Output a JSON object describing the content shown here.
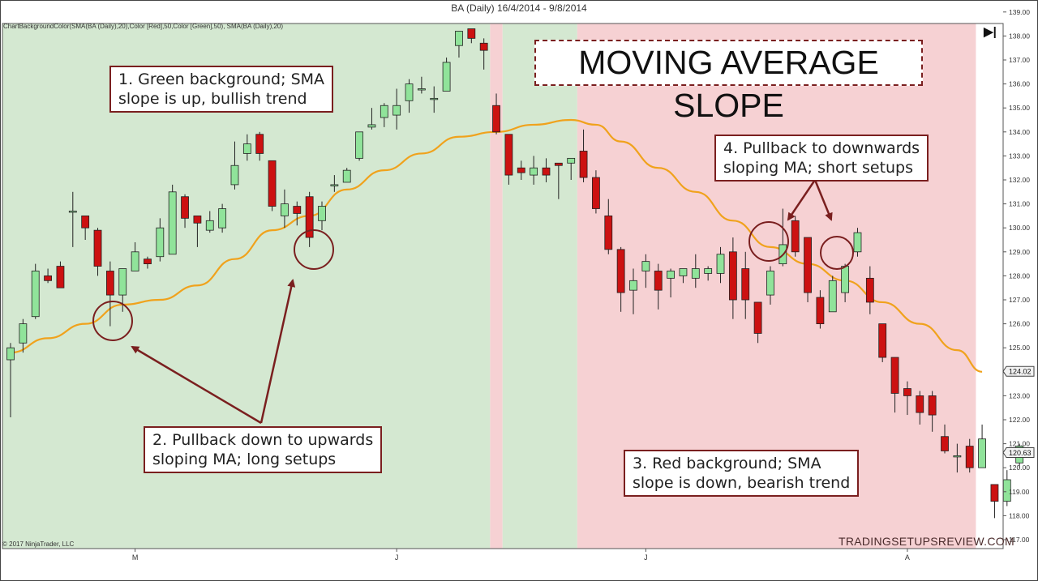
{
  "header": {
    "title": "BA (Daily)  16/4/2014 - 9/8/2014",
    "indicator_label": "ChartBackgroundColor(SMA(BA (Daily),20),Color [Red],50,Color [Green],50), SMA(BA (Daily),20)",
    "nav_glyph": "▶|"
  },
  "footer": {
    "copyright": "© 2017 NinjaTrader, LLC",
    "watermark": "TRADINGSETUPSREVIEW.COM"
  },
  "annotations": {
    "main_title": "MOVING AVERAGE SLOPE",
    "note1": [
      "1. Green background; SMA",
      "slope is up, bullish trend"
    ],
    "note2": [
      "2. Pullback down to upwards",
      "sloping MA; long setups"
    ],
    "note3": [
      "3. Red background; SMA",
      "slope is down, bearish trend"
    ],
    "note4": [
      "4. Pullback to downwards",
      "sloping MA; short setups"
    ]
  },
  "colors": {
    "bull_background": "#d4e8d1",
    "bear_background": "#f6d1d3",
    "up_candle": "#90e39a",
    "down_candle": "#cc1111",
    "sma_line": "#f0a21c",
    "annotation": "#7a1f1f"
  },
  "chart_data": {
    "type": "candlestick",
    "ylim": [
      117,
      139
    ],
    "y_ticks": [
      "117.00",
      "118.00",
      "119.00",
      "120.00",
      "121.00",
      "122.00",
      "123.00",
      "124.00",
      "125.00",
      "126.00",
      "127.00",
      "128.00",
      "129.00",
      "130.00",
      "131.00",
      "132.00",
      "133.00",
      "134.00",
      "135.00",
      "136.00",
      "137.00",
      "138.00",
      "139.00"
    ],
    "x_ticks": [
      {
        "label": "M",
        "index": 10
      },
      {
        "label": "J",
        "index": 31
      },
      {
        "label": "J",
        "index": 51
      },
      {
        "label": "A",
        "index": 72
      }
    ],
    "price_markers": [
      {
        "label": "124.02",
        "value": 124.02
      },
      {
        "label": "120.63",
        "value": 120.63
      }
    ],
    "background_segments": [
      {
        "from": 0,
        "to": 38.5,
        "trend": "up"
      },
      {
        "from": 38.5,
        "to": 39.5,
        "trend": "down"
      },
      {
        "from": 39.5,
        "to": 45.5,
        "trend": "up"
      },
      {
        "from": 45.5,
        "to": 77.5,
        "trend": "down"
      }
    ],
    "candles": [
      {
        "o": 124.5,
        "h": 125.2,
        "l": 122.1,
        "c": 125.0
      },
      {
        "o": 125.2,
        "h": 126.2,
        "l": 124.8,
        "c": 126.0
      },
      {
        "o": 126.3,
        "h": 128.5,
        "l": 126.2,
        "c": 128.2
      },
      {
        "o": 128.0,
        "h": 128.3,
        "l": 127.7,
        "c": 127.8
      },
      {
        "o": 128.4,
        "h": 128.6,
        "l": 127.5,
        "c": 127.5
      },
      {
        "o": 130.7,
        "h": 131.5,
        "l": 129.2,
        "c": 130.7
      },
      {
        "o": 130.5,
        "h": 130.5,
        "l": 129.5,
        "c": 130.0
      },
      {
        "o": 129.9,
        "h": 130.0,
        "l": 128.0,
        "c": 128.4
      },
      {
        "o": 128.2,
        "h": 128.6,
        "l": 125.9,
        "c": 127.2
      },
      {
        "o": 127.2,
        "h": 128.3,
        "l": 126.5,
        "c": 128.3
      },
      {
        "o": 128.2,
        "h": 129.4,
        "l": 128.2,
        "c": 129.0
      },
      {
        "o": 128.7,
        "h": 128.8,
        "l": 128.3,
        "c": 128.5
      },
      {
        "o": 128.8,
        "h": 130.4,
        "l": 128.6,
        "c": 130.0
      },
      {
        "o": 128.9,
        "h": 131.8,
        "l": 128.9,
        "c": 131.5
      },
      {
        "o": 131.3,
        "h": 131.4,
        "l": 130.0,
        "c": 130.4
      },
      {
        "o": 130.5,
        "h": 130.5,
        "l": 129.2,
        "c": 130.2
      },
      {
        "o": 129.9,
        "h": 130.7,
        "l": 129.8,
        "c": 130.3
      },
      {
        "o": 130.0,
        "h": 131.0,
        "l": 129.8,
        "c": 130.8
      },
      {
        "o": 131.8,
        "h": 133.6,
        "l": 131.6,
        "c": 132.6
      },
      {
        "o": 133.1,
        "h": 133.9,
        "l": 132.8,
        "c": 133.5
      },
      {
        "o": 133.9,
        "h": 134.0,
        "l": 132.8,
        "c": 133.1
      },
      {
        "o": 132.8,
        "h": 132.8,
        "l": 130.7,
        "c": 130.9
      },
      {
        "o": 130.5,
        "h": 131.6,
        "l": 130.0,
        "c": 131.0
      },
      {
        "o": 130.9,
        "h": 131.1,
        "l": 130.1,
        "c": 130.6
      },
      {
        "o": 131.3,
        "h": 131.5,
        "l": 129.2,
        "c": 129.6
      },
      {
        "o": 130.3,
        "h": 131.1,
        "l": 129.9,
        "c": 130.9
      },
      {
        "o": 131.8,
        "h": 132.2,
        "l": 131.5,
        "c": 131.8
      },
      {
        "o": 131.9,
        "h": 132.5,
        "l": 131.9,
        "c": 132.4
      },
      {
        "o": 132.9,
        "h": 134.0,
        "l": 132.8,
        "c": 134.0
      },
      {
        "o": 134.2,
        "h": 135.0,
        "l": 134.1,
        "c": 134.3
      },
      {
        "o": 134.6,
        "h": 135.2,
        "l": 134.2,
        "c": 135.1
      },
      {
        "o": 134.7,
        "h": 135.8,
        "l": 134.1,
        "c": 135.1
      },
      {
        "o": 135.3,
        "h": 136.2,
        "l": 134.8,
        "c": 136.0
      },
      {
        "o": 135.8,
        "h": 136.3,
        "l": 135.6,
        "c": 135.8
      },
      {
        "o": 135.4,
        "h": 135.9,
        "l": 134.8,
        "c": 135.4
      },
      {
        "o": 135.7,
        "h": 137.1,
        "l": 135.7,
        "c": 136.9
      },
      {
        "o": 137.6,
        "h": 138.2,
        "l": 137.1,
        "c": 138.2
      },
      {
        "o": 138.3,
        "h": 138.3,
        "l": 137.7,
        "c": 137.9
      },
      {
        "o": 137.7,
        "h": 137.9,
        "l": 136.6,
        "c": 137.4
      },
      {
        "o": 135.1,
        "h": 135.6,
        "l": 133.9,
        "c": 134.0
      },
      {
        "o": 133.9,
        "h": 133.9,
        "l": 131.8,
        "c": 132.2
      },
      {
        "o": 132.5,
        "h": 132.8,
        "l": 132.0,
        "c": 132.3
      },
      {
        "o": 132.2,
        "h": 133.0,
        "l": 131.8,
        "c": 132.5
      },
      {
        "o": 132.5,
        "h": 132.9,
        "l": 131.9,
        "c": 132.2
      },
      {
        "o": 132.7,
        "h": 132.7,
        "l": 131.2,
        "c": 132.6
      },
      {
        "o": 132.7,
        "h": 132.9,
        "l": 132.0,
        "c": 132.9
      },
      {
        "o": 133.2,
        "h": 134.1,
        "l": 131.9,
        "c": 132.1
      },
      {
        "o": 132.1,
        "h": 132.4,
        "l": 130.6,
        "c": 130.8
      },
      {
        "o": 130.5,
        "h": 131.2,
        "l": 128.9,
        "c": 129.1
      },
      {
        "o": 129.1,
        "h": 129.2,
        "l": 126.5,
        "c": 127.3
      },
      {
        "o": 127.4,
        "h": 128.3,
        "l": 126.4,
        "c": 127.8
      },
      {
        "o": 128.2,
        "h": 128.9,
        "l": 127.5,
        "c": 128.6
      },
      {
        "o": 128.2,
        "h": 128.5,
        "l": 126.6,
        "c": 127.4
      },
      {
        "o": 127.9,
        "h": 128.3,
        "l": 127.1,
        "c": 128.2
      },
      {
        "o": 128.0,
        "h": 128.3,
        "l": 127.7,
        "c": 128.3
      },
      {
        "o": 127.9,
        "h": 128.9,
        "l": 127.5,
        "c": 128.3
      },
      {
        "o": 128.1,
        "h": 128.4,
        "l": 127.8,
        "c": 128.3
      },
      {
        "o": 128.1,
        "h": 129.2,
        "l": 127.7,
        "c": 128.9
      },
      {
        "o": 129.0,
        "h": 129.6,
        "l": 126.2,
        "c": 127.0
      },
      {
        "o": 128.3,
        "h": 129.0,
        "l": 126.2,
        "c": 127.0
      },
      {
        "o": 126.9,
        "h": 126.9,
        "l": 125.2,
        "c": 125.6
      },
      {
        "o": 127.2,
        "h": 128.4,
        "l": 126.8,
        "c": 128.2
      },
      {
        "o": 128.5,
        "h": 130.8,
        "l": 128.4,
        "c": 129.3
      },
      {
        "o": 130.3,
        "h": 130.5,
        "l": 128.8,
        "c": 129.0
      },
      {
        "o": 129.6,
        "h": 129.6,
        "l": 126.9,
        "c": 127.3
      },
      {
        "o": 127.1,
        "h": 127.4,
        "l": 125.8,
        "c": 126.0
      },
      {
        "o": 126.5,
        "h": 128.0,
        "l": 126.5,
        "c": 127.8
      },
      {
        "o": 127.3,
        "h": 128.5,
        "l": 126.9,
        "c": 128.4
      },
      {
        "o": 129.0,
        "h": 130.0,
        "l": 128.8,
        "c": 129.8
      },
      {
        "o": 127.9,
        "h": 128.4,
        "l": 126.4,
        "c": 126.9
      },
      {
        "o": 126.0,
        "h": 126.0,
        "l": 124.4,
        "c": 124.6
      },
      {
        "o": 124.6,
        "h": 124.6,
        "l": 122.3,
        "c": 123.1
      },
      {
        "o": 123.3,
        "h": 123.6,
        "l": 122.2,
        "c": 123.0
      },
      {
        "o": 123.0,
        "h": 123.2,
        "l": 121.8,
        "c": 122.3
      },
      {
        "o": 123.0,
        "h": 123.2,
        "l": 121.5,
        "c": 122.2
      },
      {
        "o": 121.3,
        "h": 121.8,
        "l": 120.6,
        "c": 120.7
      },
      {
        "o": 120.5,
        "h": 121.0,
        "l": 119.8,
        "c": 120.5
      },
      {
        "o": 120.9,
        "h": 121.2,
        "l": 119.8,
        "c": 120.0
      },
      {
        "o": 120.0,
        "h": 121.8,
        "l": 120.0,
        "c": 121.2
      },
      {
        "o": 119.3,
        "h": 119.3,
        "l": 117.9,
        "c": 118.6
      },
      {
        "o": 118.6,
        "h": 119.9,
        "l": 118.4,
        "c": 119.5
      },
      {
        "o": 120.2,
        "h": 121.0,
        "l": 120.0,
        "c": 120.9
      }
    ],
    "sma": [
      {
        "i": 0,
        "v": 124.8
      },
      {
        "i": 3,
        "v": 125.4
      },
      {
        "i": 6,
        "v": 126.0
      },
      {
        "i": 9,
        "v": 126.8
      },
      {
        "i": 12,
        "v": 127.0
      },
      {
        "i": 15,
        "v": 127.6
      },
      {
        "i": 18,
        "v": 128.7
      },
      {
        "i": 21,
        "v": 129.9
      },
      {
        "i": 24,
        "v": 130.5
      },
      {
        "i": 27,
        "v": 131.6
      },
      {
        "i": 30,
        "v": 132.4
      },
      {
        "i": 33,
        "v": 133.1
      },
      {
        "i": 36,
        "v": 133.8
      },
      {
        "i": 39,
        "v": 134.0
      },
      {
        "i": 42,
        "v": 134.3
      },
      {
        "i": 45,
        "v": 134.5
      },
      {
        "i": 47,
        "v": 134.3
      },
      {
        "i": 49,
        "v": 133.6
      },
      {
        "i": 52,
        "v": 132.5
      },
      {
        "i": 55,
        "v": 131.5
      },
      {
        "i": 58,
        "v": 130.3
      },
      {
        "i": 61,
        "v": 129.2
      },
      {
        "i": 64,
        "v": 128.5
      },
      {
        "i": 67,
        "v": 127.8
      },
      {
        "i": 70,
        "v": 126.9
      },
      {
        "i": 73,
        "v": 126.0
      },
      {
        "i": 76,
        "v": 124.9
      },
      {
        "i": 78,
        "v": 124.0
      }
    ]
  }
}
